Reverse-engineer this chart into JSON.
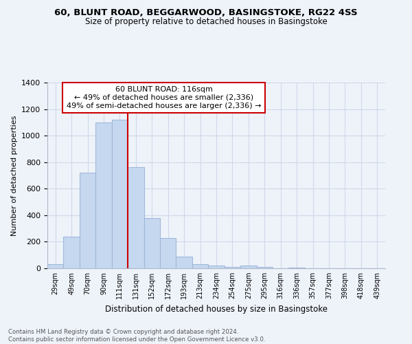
{
  "title": "60, BLUNT ROAD, BEGGARWOOD, BASINGSTOKE, RG22 4SS",
  "subtitle": "Size of property relative to detached houses in Basingstoke",
  "xlabel": "Distribution of detached houses by size in Basingstoke",
  "ylabel": "Number of detached properties",
  "footnote1": "Contains HM Land Registry data © Crown copyright and database right 2024.",
  "footnote2": "Contains public sector information licensed under the Open Government Licence v3.0.",
  "bar_labels": [
    "29sqm",
    "49sqm",
    "70sqm",
    "90sqm",
    "111sqm",
    "131sqm",
    "152sqm",
    "172sqm",
    "193sqm",
    "213sqm",
    "234sqm",
    "254sqm",
    "275sqm",
    "295sqm",
    "316sqm",
    "336sqm",
    "357sqm",
    "377sqm",
    "398sqm",
    "418sqm",
    "439sqm"
  ],
  "bar_values": [
    30,
    240,
    720,
    1100,
    1120,
    760,
    380,
    230,
    90,
    30,
    20,
    10,
    20,
    10,
    0,
    5,
    0,
    0,
    0,
    0,
    0
  ],
  "bar_color": "#c5d8f0",
  "bar_edgecolor": "#a0b8d8",
  "vline_x": 4.5,
  "vline_color": "#cc0000",
  "annotation_title": "60 BLUNT ROAD: 116sqm",
  "annotation_line1": "← 49% of detached houses are smaller (2,336)",
  "annotation_line2": "49% of semi-detached houses are larger (2,336) →",
  "annotation_box_edgecolor": "#cc0000",
  "ylim": [
    0,
    1400
  ],
  "yticks": [
    0,
    200,
    400,
    600,
    800,
    1000,
    1200,
    1400
  ],
  "grid_color": "#d0d8e8",
  "bg_color": "#eef3fa"
}
